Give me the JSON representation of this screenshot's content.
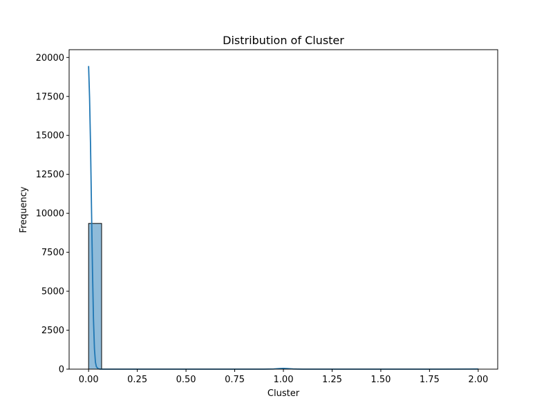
{
  "chart_data": {
    "type": "bar",
    "title": "Distribution of Cluster",
    "xlabel": "Cluster",
    "ylabel": "Frequency",
    "xlim": [
      -0.1,
      2.1
    ],
    "ylim": [
      0,
      20500
    ],
    "x_ticks": [
      0.0,
      0.25,
      0.5,
      0.75,
      1.0,
      1.25,
      1.5,
      1.75,
      2.0
    ],
    "x_tick_labels": [
      "0.00",
      "0.25",
      "0.50",
      "0.75",
      "1.00",
      "1.25",
      "1.50",
      "1.75",
      "2.00"
    ],
    "y_ticks": [
      0,
      2500,
      5000,
      7500,
      10000,
      12500,
      15000,
      17500,
      20000
    ],
    "y_tick_labels": [
      "0",
      "2500",
      "5000",
      "7500",
      "10000",
      "12500",
      "15000",
      "17500",
      "20000"
    ],
    "bin_edges": [
      0.0,
      0.0667,
      0.1333,
      0.2,
      0.2667,
      0.3333,
      0.4,
      0.4667,
      0.5333,
      0.6,
      0.6667,
      0.7333,
      0.8,
      0.8667,
      0.9333,
      1.0,
      1.0667,
      1.1333,
      1.2,
      1.2667,
      1.3333,
      1.4,
      1.4667,
      1.5333,
      1.6,
      1.6667,
      1.7333,
      1.8,
      1.8667,
      1.9333,
      2.0
    ],
    "bin_counts": [
      9350,
      0,
      0,
      0,
      0,
      0,
      0,
      0,
      0,
      0,
      0,
      0,
      0,
      0,
      0,
      25,
      0,
      0,
      0,
      0,
      0,
      0,
      0,
      0,
      0,
      0,
      0,
      0,
      0,
      10
    ],
    "kde": {
      "x": [
        0.0,
        0.005,
        0.01,
        0.015,
        0.02,
        0.025,
        0.03,
        0.035,
        0.04,
        0.05,
        0.06,
        0.08,
        0.15,
        0.3,
        0.5,
        0.75,
        0.9,
        0.95,
        0.98,
        1.0,
        1.02,
        1.05,
        1.1,
        1.2,
        1.5,
        1.8,
        1.95,
        2.0
      ],
      "y": [
        19450,
        17400,
        14300,
        10200,
        6300,
        3200,
        1300,
        450,
        150,
        20,
        0,
        0,
        0,
        0,
        0,
        0,
        0,
        10,
        40,
        50,
        40,
        10,
        0,
        0,
        0,
        0,
        5,
        8
      ]
    },
    "bar_color": "#1f77b4",
    "bar_alpha": 0.5,
    "kde_color": "#1f77b4",
    "grid": false
  }
}
